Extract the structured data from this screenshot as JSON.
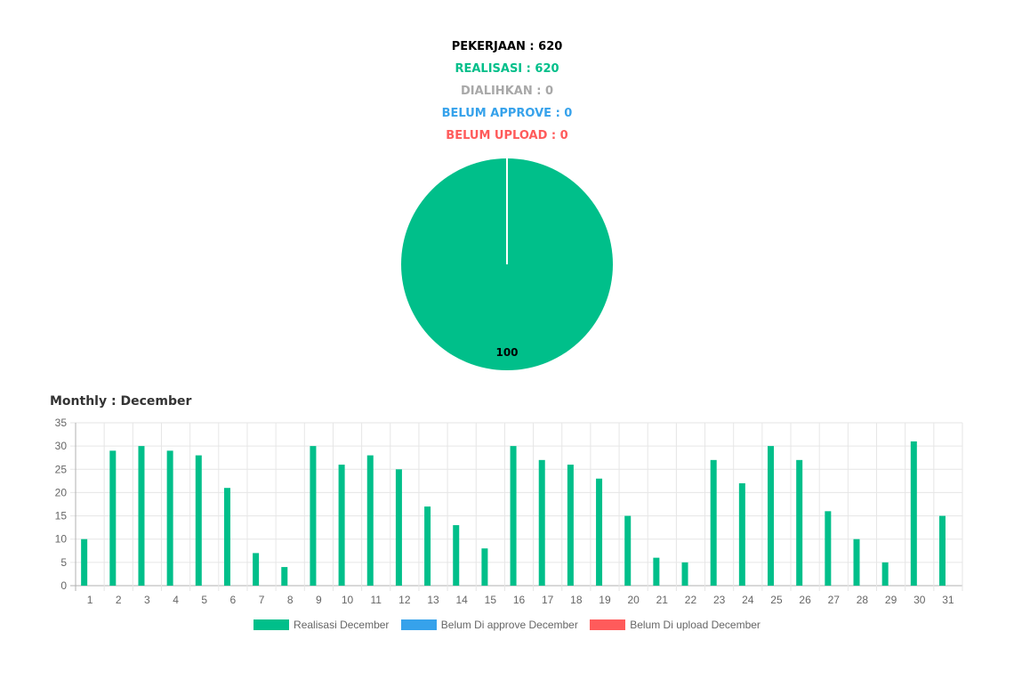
{
  "stats": {
    "pekerjaan": "PEKERJAAN : 620",
    "realisasi": "REALISASI : 620",
    "dialihkan": "DIALIHKAN : 0",
    "belum_approve": "BELUM APPROVE : 0",
    "belum_upload": "BELUM UPLOAD : 0"
  },
  "colors": {
    "pekerjaan": "#000000",
    "realisasi": "#00bf8a",
    "dialihkan": "#a8a8a8",
    "belum_approve": "#36a2eb",
    "belum_upload": "#ff5b5b"
  },
  "monthly": {
    "title": "Monthly : December"
  },
  "chart_data": [
    {
      "type": "pie",
      "slices": [
        {
          "value": 100,
          "label": "100",
          "color": "#00bf8a"
        }
      ]
    },
    {
      "type": "bar",
      "categories": [
        "1",
        "2",
        "3",
        "4",
        "5",
        "6",
        "7",
        "8",
        "9",
        "10",
        "11",
        "12",
        "13",
        "14",
        "15",
        "16",
        "17",
        "18",
        "19",
        "20",
        "21",
        "22",
        "23",
        "24",
        "25",
        "26",
        "27",
        "28",
        "29",
        "30",
        "31"
      ],
      "series": [
        {
          "name": "Realisasi December",
          "color": "#00bf8a",
          "values": [
            10,
            29,
            30,
            29,
            28,
            21,
            7,
            4,
            30,
            26,
            28,
            25,
            17,
            13,
            8,
            30,
            27,
            26,
            23,
            15,
            6,
            5,
            27,
            22,
            30,
            27,
            16,
            10,
            5,
            31,
            15
          ]
        },
        {
          "name": "Belum Di approve December",
          "color": "#36a2eb",
          "values": [
            0,
            0,
            0,
            0,
            0,
            0,
            0,
            0,
            0,
            0,
            0,
            0,
            0,
            0,
            0,
            0,
            0,
            0,
            0,
            0,
            0,
            0,
            0,
            0,
            0,
            0,
            0,
            0,
            0,
            0,
            0
          ]
        },
        {
          "name": "Belum Di upload December",
          "color": "#ff5b5b",
          "values": [
            0,
            0,
            0,
            0,
            0,
            0,
            0,
            0,
            0,
            0,
            0,
            0,
            0,
            0,
            0,
            0,
            0,
            0,
            0,
            0,
            0,
            0,
            0,
            0,
            0,
            0,
            0,
            0,
            0,
            0,
            0
          ]
        }
      ],
      "title": "Monthly : December",
      "ylim": [
        0,
        35
      ],
      "yticks": [
        "0",
        "5",
        "10",
        "15",
        "20",
        "25",
        "30",
        "35"
      ],
      "grid": true,
      "legend": "bottom"
    }
  ]
}
